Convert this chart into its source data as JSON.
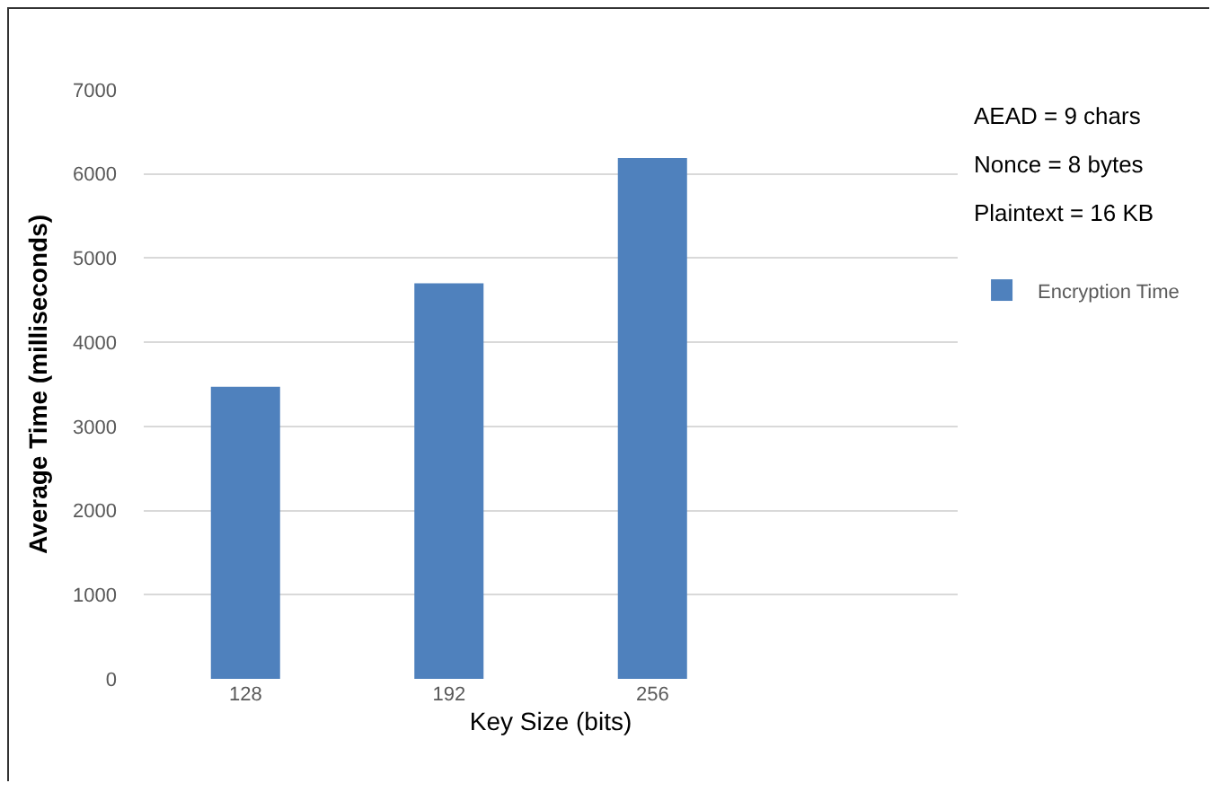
{
  "chart_data": {
    "type": "bar",
    "xlabel": "Key Size (bits)",
    "ylabel": "Average Time (milliseconds)",
    "categories": [
      "128",
      "192",
      "256",
      null
    ],
    "series": [
      {
        "name": "Encryption Time",
        "color": "#4f81bd",
        "values": [
          3470,
          4700,
          6190,
          null
        ]
      }
    ],
    "ylim": [
      0,
      7000
    ],
    "yticks": [
      0,
      1000,
      2000,
      3000,
      4000,
      5000,
      6000,
      7000
    ],
    "grid": "y",
    "legend": "right",
    "annotations": [
      "AEAD = 9 chars",
      "Nonce = 8 bytes",
      "Plaintext = 16 KB"
    ]
  }
}
